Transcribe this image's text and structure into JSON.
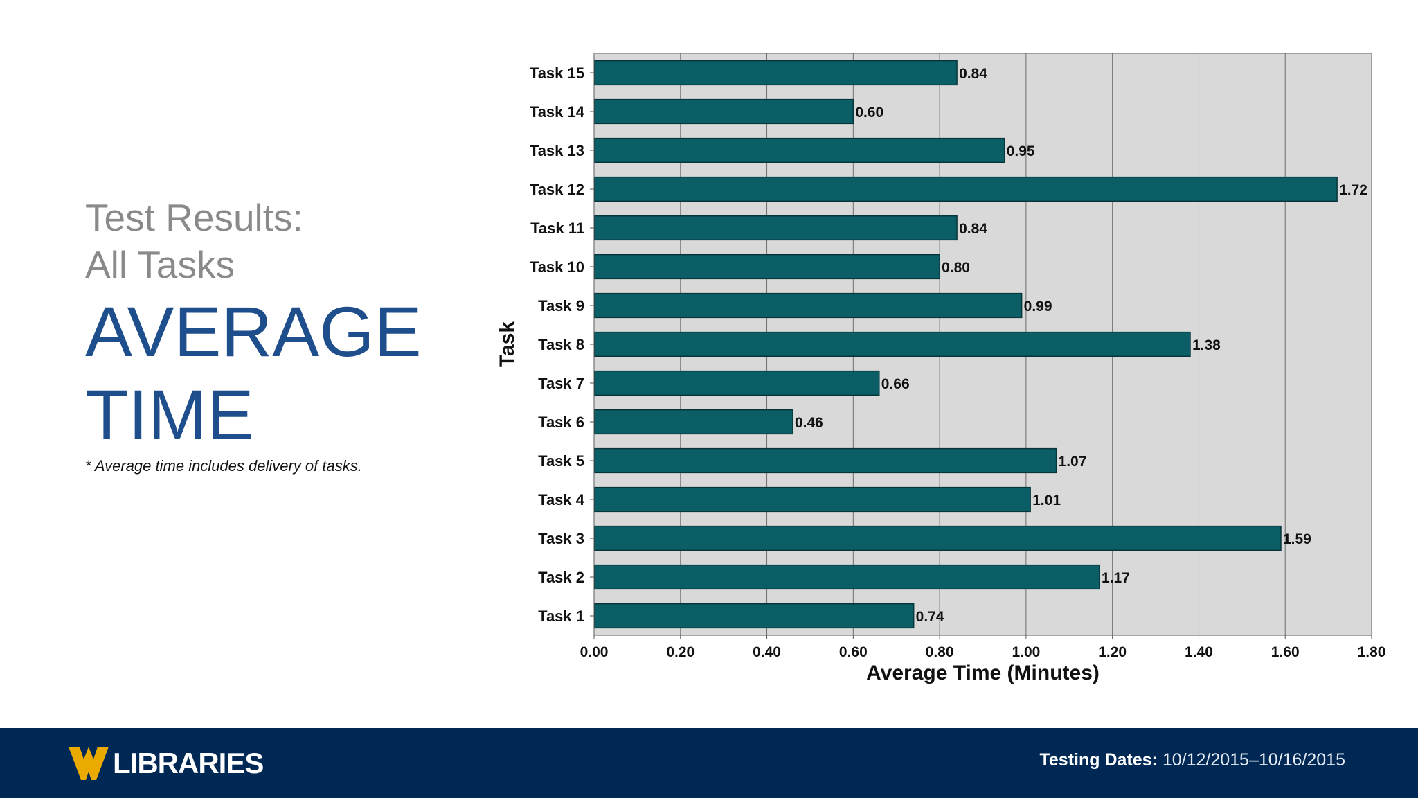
{
  "slide": {
    "subtitle_line1": "Test Results:",
    "subtitle_line2": "All Tasks",
    "title_line1": "AVERAGE",
    "title_line2": "TIME",
    "footnote": "* Average time includes delivery of tasks."
  },
  "footer": {
    "logo_text": "LIBRARIES",
    "testing_label": "Testing Dates:",
    "testing_value": "10/12/2015–10/16/2015"
  },
  "colors": {
    "bar": "#0b5e66",
    "plot_bg": "#d9d9d9",
    "footer_bg": "#002855",
    "title_blue": "#1f4e8c",
    "logo_gold": "#eaaa00"
  },
  "chart_data": {
    "type": "bar",
    "orientation": "horizontal",
    "categories": [
      "Task 15",
      "Task 14",
      "Task 13",
      "Task 12",
      "Task 11",
      "Task 10",
      "Task 9",
      "Task 8",
      "Task 7",
      "Task 6",
      "Task 5",
      "Task 4",
      "Task 3",
      "Task 2",
      "Task 1"
    ],
    "values": [
      0.84,
      0.6,
      0.95,
      1.72,
      0.84,
      0.8,
      0.99,
      1.38,
      0.66,
      0.46,
      1.07,
      1.01,
      1.59,
      1.17,
      0.74
    ],
    "value_labels": [
      "0.84",
      "0.60",
      "0.95",
      "1.72",
      "0.84",
      "0.80",
      "0.99",
      "1.38",
      "0.66",
      "0.46",
      "1.07",
      "1.01",
      "1.59",
      "1.17",
      "0.74"
    ],
    "xlabel": "Average Time (Minutes)",
    "ylabel": "Task",
    "xlim": [
      0,
      1.8
    ],
    "xticks": [
      "0.00",
      "0.20",
      "0.40",
      "0.60",
      "0.80",
      "1.00",
      "1.20",
      "1.40",
      "1.60",
      "1.80"
    ],
    "grid": true
  }
}
